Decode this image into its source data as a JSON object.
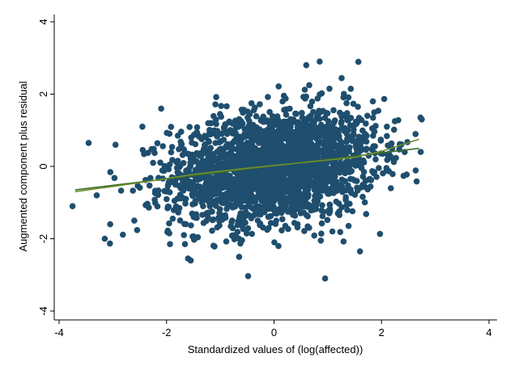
{
  "chart_data": {
    "type": "scatter",
    "title": "",
    "xlabel": "Standardized values of (log(affected))",
    "ylabel": "Augmented component plus residual",
    "xlim": [
      -4,
      4
    ],
    "ylim": [
      -4,
      4
    ],
    "xticks": [
      -4,
      -2,
      0,
      2,
      4
    ],
    "yticks": [
      -4,
      -2,
      0,
      2,
      4
    ],
    "grid": false,
    "legend": "none",
    "colors": {
      "points": "#1f4e6e",
      "linear_fit": "#3a6b2a",
      "smooth_fit": "#6e8f2f"
    },
    "point_cloud": {
      "description": "dense elliptical cloud of observations",
      "center": [
        0.0,
        0.0
      ],
      "x_spread": 1.0,
      "y_spread": 0.9,
      "x_range": [
        -3.75,
        2.75
      ],
      "y_range": [
        -3.1,
        2.9
      ]
    },
    "outliers": [
      [
        -3.75,
        -1.1
      ],
      [
        -3.45,
        0.65
      ],
      [
        -3.15,
        -2.0
      ],
      [
        -3.05,
        -1.6
      ],
      [
        -2.95,
        0.6
      ],
      [
        -2.6,
        -1.5
      ],
      [
        -2.45,
        1.1
      ],
      [
        -2.1,
        1.6
      ],
      [
        -1.55,
        -2.6
      ],
      [
        -1.6,
        -2.55
      ],
      [
        -0.65,
        -2.5
      ],
      [
        0.95,
        -3.1
      ],
      [
        0.6,
        2.8
      ],
      [
        0.85,
        2.9
      ],
      [
        2.75,
        1.3
      ],
      [
        2.1,
        1.1
      ],
      [
        1.6,
        -2.35
      ],
      [
        2.25,
        1.25
      ],
      [
        -1.95,
        -1.85
      ],
      [
        -3.3,
        -0.8
      ]
    ],
    "series": [
      {
        "type": "line",
        "x": [
          -3.7,
          2.7
        ],
        "y": [
          -0.65,
          0.5
        ]
      },
      {
        "type": "line",
        "x": [
          -3.7,
          -2.5,
          -1.5,
          -0.5,
          0.5,
          1.5,
          2.0,
          2.7
        ],
        "y": [
          -0.7,
          -0.45,
          -0.22,
          -0.05,
          0.1,
          0.25,
          0.42,
          0.75
        ]
      }
    ]
  }
}
